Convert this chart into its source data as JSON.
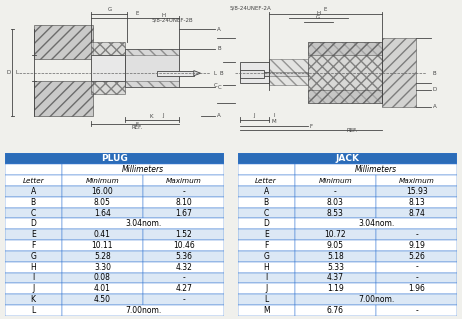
{
  "plug_title": "PLUG",
  "jack_title": "JACK",
  "plug_data": [
    [
      "A",
      "16.00",
      "-"
    ],
    [
      "B",
      "8.05",
      "8.10"
    ],
    [
      "C",
      "1.64",
      "1.67"
    ],
    [
      "D",
      "3.04nom.",
      ""
    ],
    [
      "E",
      "0.41",
      "1.52"
    ],
    [
      "F",
      "10.11",
      "10.46"
    ],
    [
      "G",
      "5.28",
      "5.36"
    ],
    [
      "H",
      "3.30",
      "4.32"
    ],
    [
      "I",
      "0.08",
      "-"
    ],
    [
      "J",
      "4.01",
      "4.27"
    ],
    [
      "K",
      "4.50",
      "-"
    ],
    [
      "L",
      "7.00nom.",
      ""
    ]
  ],
  "jack_data": [
    [
      "A",
      "-",
      "15.93"
    ],
    [
      "B",
      "8.03",
      "8.13"
    ],
    [
      "C",
      "8.53",
      "8.74"
    ],
    [
      "D",
      "3.04nom.",
      ""
    ],
    [
      "E",
      "10.72",
      "-"
    ],
    [
      "F",
      "9.05",
      "9.19"
    ],
    [
      "G",
      "5.18",
      "5.26"
    ],
    [
      "H",
      "5.33",
      "-"
    ],
    [
      "I",
      "4.37",
      "-"
    ],
    [
      "J",
      "1.19",
      "1.96"
    ],
    [
      "L",
      "7.00nom.",
      ""
    ],
    [
      "M",
      "6.76",
      "-"
    ]
  ],
  "header_color": "#2b6cb8",
  "header_text_color": "#ffffff",
  "row_color_odd": "#dce8f5",
  "row_color_even": "#ffffff",
  "border_color": "#3a7ad4",
  "bg_color": "#f0f0ec",
  "line_color": "#444444",
  "hatch_color": "#888888"
}
